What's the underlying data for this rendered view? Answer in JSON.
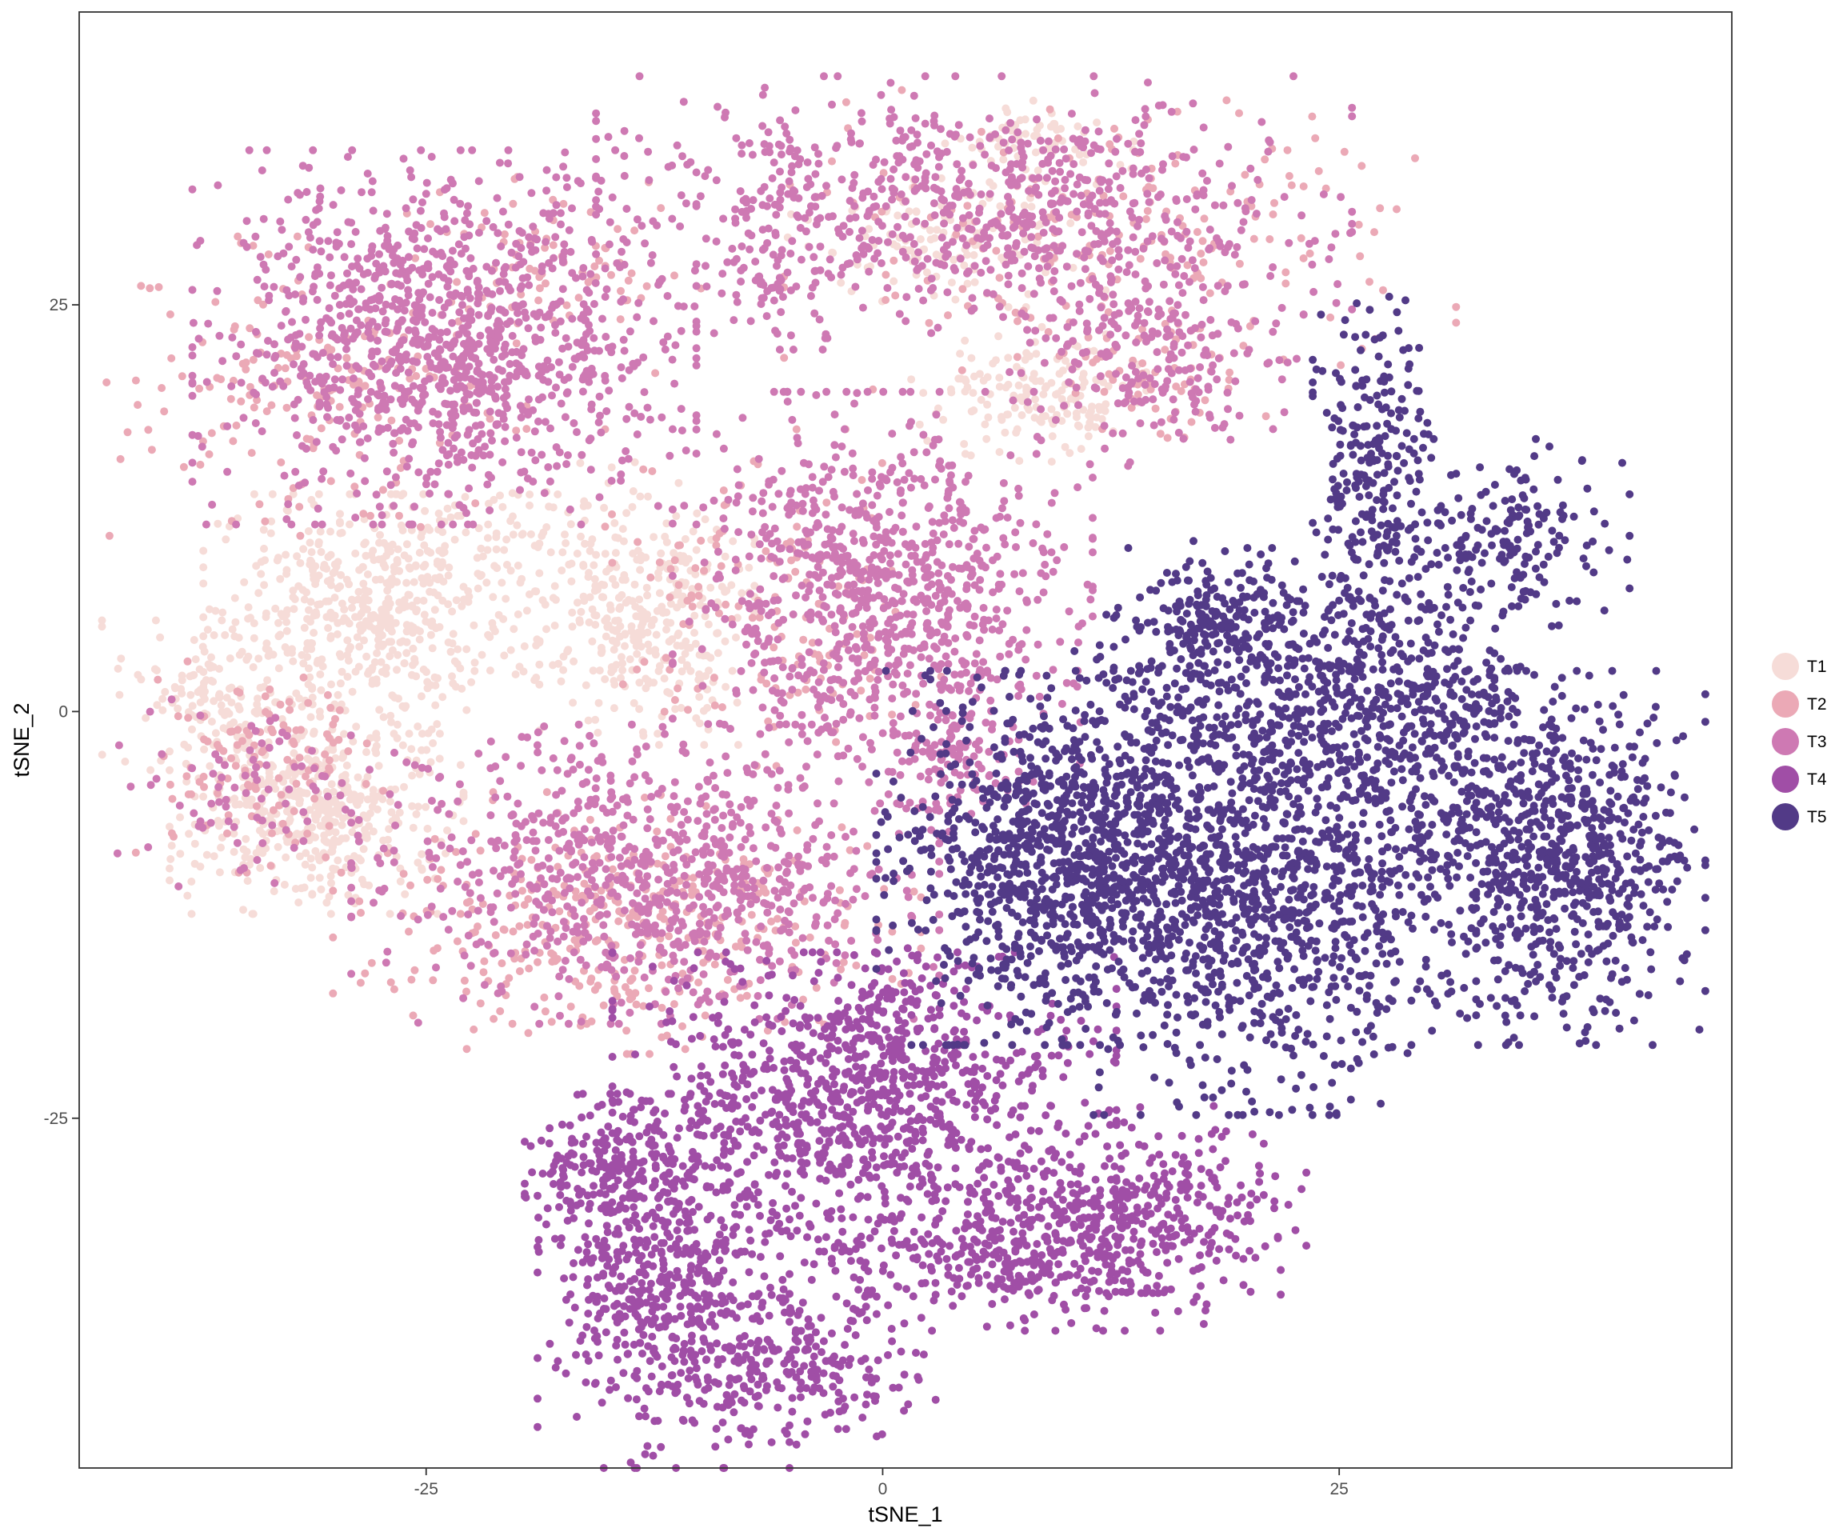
{
  "chart_data": {
    "type": "scatter",
    "title": "",
    "xlabel": "tSNE_1",
    "ylabel": "tSNE_2",
    "xlim": [
      -44,
      46.5
    ],
    "ylim": [
      -46.5,
      43
    ],
    "x_ticks": [
      -25,
      0,
      25
    ],
    "y_ticks": [
      -25,
      0,
      25
    ],
    "x_tick_labels": [
      "-25",
      "0",
      "25"
    ],
    "y_tick_labels": [
      "-25",
      "0",
      "25"
    ],
    "grid": false,
    "legend": {
      "position": "right"
    },
    "point_count_per_cluster": "dense",
    "series": [
      {
        "name": "T1",
        "color": "#F6DCD8",
        "regions": [
          {
            "x": -28,
            "y": 6,
            "sx": 4,
            "sy": 3.2,
            "n": 520
          },
          {
            "x": -37,
            "y": 1,
            "sx": 2.5,
            "sy": 2,
            "n": 120
          },
          {
            "x": -31,
            "y": -6,
            "sx": 3.5,
            "sy": 2.8,
            "n": 460
          },
          {
            "x": -13,
            "y": 6,
            "sx": 2.6,
            "sy": 3.5,
            "n": 340
          },
          {
            "x": 4,
            "y": 29,
            "sx": 4,
            "sy": 1.8,
            "n": 120
          },
          {
            "x": 8,
            "y": 19.5,
            "sx": 2.8,
            "sy": 1.8,
            "n": 160
          },
          {
            "x": 8,
            "y": 35,
            "sx": 2.5,
            "sy": 1.3,
            "n": 70
          },
          {
            "x": -20,
            "y": 11,
            "sx": 4,
            "sy": 2,
            "n": 80
          }
        ]
      },
      {
        "name": "T2",
        "color": "#EBA9B6",
        "regions": [
          {
            "x": -31,
            "y": 20,
            "sx": 5,
            "sy": 4,
            "n": 180
          },
          {
            "x": -14,
            "y": -13,
            "sx": 7,
            "sy": 3.5,
            "n": 380
          },
          {
            "x": -6,
            "y": 7,
            "sx": 4,
            "sy": 4.5,
            "n": 150
          },
          {
            "x": 13,
            "y": 29,
            "sx": 8,
            "sy": 4,
            "n": 200
          },
          {
            "x": -34,
            "y": -3,
            "sx": 3,
            "sy": 3,
            "n": 120
          },
          {
            "x": -18,
            "y": 27,
            "sx": 3.5,
            "sy": 3,
            "n": 80
          },
          {
            "x": 16,
            "y": 21,
            "sx": 3,
            "sy": 2,
            "n": 60
          }
        ]
      },
      {
        "name": "T3",
        "color": "#CE79B3",
        "regions": [
          {
            "x": -24,
            "y": 23,
            "sx": 6,
            "sy": 5,
            "n": 1150
          },
          {
            "x": 0,
            "y": 7,
            "sx": 5,
            "sy": 5.5,
            "n": 900
          },
          {
            "x": 4,
            "y": -3,
            "sx": 1.5,
            "sy": 2,
            "n": 90
          },
          {
            "x": -13,
            "y": -10,
            "sx": 7,
            "sy": 4,
            "n": 800
          },
          {
            "x": 5,
            "y": 31,
            "sx": 9,
            "sy": 3.5,
            "n": 750
          },
          {
            "x": 15,
            "y": 22,
            "sx": 3.5,
            "sy": 3,
            "n": 220
          },
          {
            "x": -35,
            "y": -5,
            "sx": 3,
            "sy": 2.5,
            "n": 80
          },
          {
            "x": -6,
            "y": 28,
            "sx": 1.8,
            "sy": 2.5,
            "n": 60
          }
        ]
      },
      {
        "name": "T4",
        "color": "#A04EA6",
        "regions": [
          {
            "x": -1,
            "y": -24,
            "sx": 6,
            "sy": 4,
            "n": 900
          },
          {
            "x": 8,
            "y": -33,
            "sx": 6,
            "sy": 2.2,
            "n": 450
          },
          {
            "x": 14,
            "y": -30,
            "sx": 4,
            "sy": 2.5,
            "n": 250
          },
          {
            "x": -12,
            "y": -35,
            "sx": 3,
            "sy": 5,
            "n": 600
          },
          {
            "x": -4,
            "y": -40,
            "sx": 3,
            "sy": 2.2,
            "n": 220
          },
          {
            "x": -15,
            "y": -28,
            "sx": 2,
            "sy": 2,
            "n": 150
          },
          {
            "x": 1,
            "y": -18,
            "sx": 1.5,
            "sy": 1.5,
            "n": 80
          }
        ]
      },
      {
        "name": "T5",
        "color": "#523A87",
        "regions": [
          {
            "x": 10,
            "y": -9,
            "sx": 4.5,
            "sy": 5,
            "n": 1100
          },
          {
            "x": 21,
            "y": -11,
            "sx": 5,
            "sy": 6,
            "n": 1050
          },
          {
            "x": 37,
            "y": -9,
            "sx": 3.5,
            "sy": 5,
            "n": 750
          },
          {
            "x": 22,
            "y": 2,
            "sx": 5,
            "sy": 3.5,
            "n": 400
          },
          {
            "x": 30,
            "y": -1,
            "sx": 3,
            "sy": 4,
            "n": 300
          },
          {
            "x": 27,
            "y": 14,
            "sx": 1.5,
            "sy": 5,
            "n": 260
          },
          {
            "x": 34,
            "y": 11,
            "sx": 3,
            "sy": 2.5,
            "n": 180
          },
          {
            "x": 18,
            "y": 6,
            "sx": 2.5,
            "sy": 2,
            "n": 150
          }
        ]
      }
    ]
  }
}
